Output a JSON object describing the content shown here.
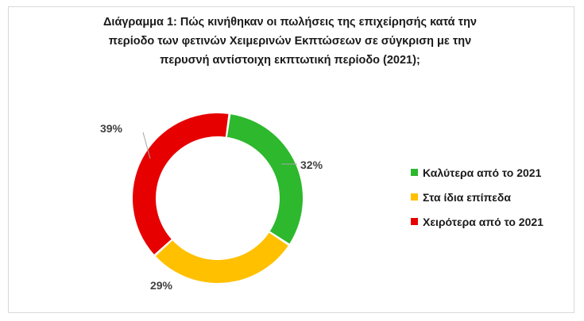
{
  "title_lines": [
    "Διάγραμμα 1: Πώς κινήθηκαν οι πωλήσεις της επιχείρησής κατά  την",
    "περίοδο των φετινών Χειμερινών Εκπτώσεων σε σύγκριση με την",
    "περυσνή αντίστοιχη εκπτωτική περίοδο (2021);"
  ],
  "chart_data": {
    "type": "pie",
    "style": "donut",
    "title": "Διάγραμμα 1: Πώς κινήθηκαν οι πωλήσεις της επιχείρησής κατά  την περίοδο των φετινών Χειμερινών Εκπτώσεων σε σύγκριση με την περυσνή αντίστοιχη εκπτωτική περίοδο (2021);",
    "categories": [
      "Καλύτερα από το 2021",
      "Στα ίδια επίπεδα",
      "Χειρότερα από το 2021"
    ],
    "values": [
      32,
      29,
      39
    ],
    "labels": [
      "32%",
      "29%",
      "39%"
    ],
    "colors": [
      "#2db82d",
      "#ffc000",
      "#e60000"
    ],
    "legend_position": "right"
  }
}
